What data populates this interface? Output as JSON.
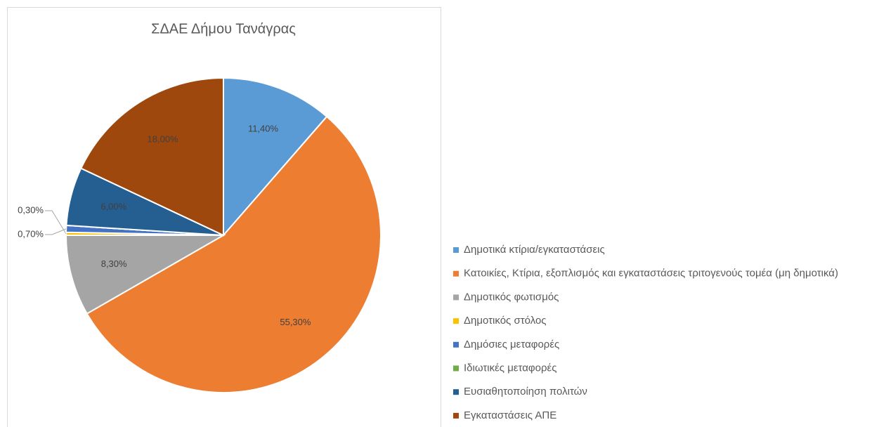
{
  "chart_data": {
    "type": "pie",
    "title": "ΣΔΑΕ Δήμου Τανάγρας",
    "categories": [
      "Δημοτικά κτίρια/εγκαταστάσεις",
      "Κατοικίες, Κτίρια, εξοπλισμός και εγκαταστάσεις τριτογενούς τομέα (μη δημοτικά)",
      "Δημοτικός φωτισμός",
      "Δημοτικός στόλος",
      "Δημόσιες μεταφορές",
      "Ιδιωτικές μεταφορές",
      "Ευσιαθητοποίηση πολιτών",
      "Εγκαταστάσεις ΑΠΕ"
    ],
    "values": [
      11.4,
      55.3,
      8.3,
      0.3,
      0.7,
      0,
      6.0,
      18.0
    ],
    "value_labels": [
      "11,40%",
      "55,30%",
      "8,30%",
      "0,30%",
      "0,70%",
      null,
      "6,00%",
      "18,00%"
    ],
    "colors": [
      "#5b9bd5",
      "#ed7d31",
      "#a5a5a5",
      "#ffc000",
      "#4472c4",
      "#70ad47",
      "#255e91",
      "#9e480e"
    ],
    "legend": "right"
  }
}
